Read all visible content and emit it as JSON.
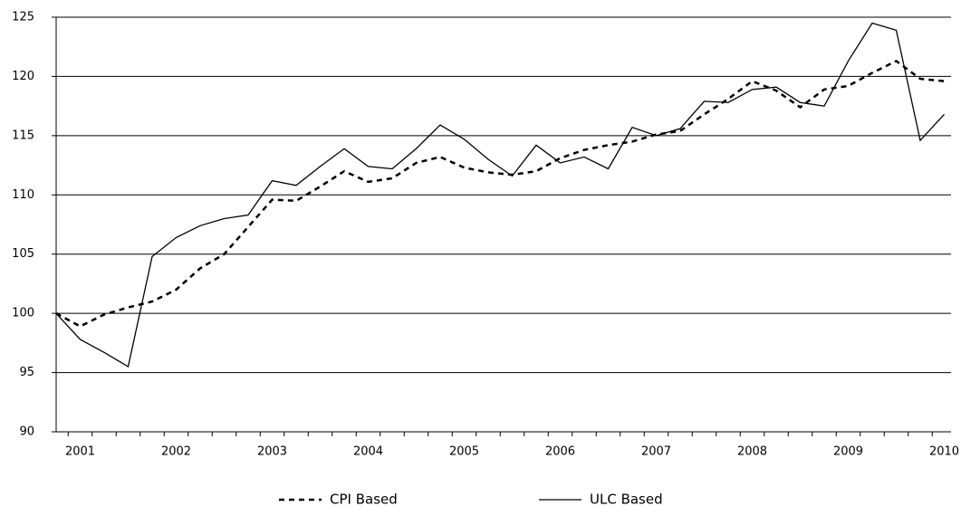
{
  "chart_data": {
    "type": "line",
    "categories": [
      null,
      "2001",
      null,
      null,
      null,
      "2002",
      null,
      null,
      null,
      "2003",
      null,
      null,
      null,
      "2004",
      null,
      null,
      null,
      "2005",
      null,
      null,
      null,
      "2006",
      null,
      null,
      null,
      "2007",
      null,
      null,
      null,
      "2008",
      null,
      null,
      null,
      "2009",
      null,
      null,
      null,
      "2010"
    ],
    "series": [
      {
        "name": "CPI Based",
        "color": "#000000",
        "dash": true,
        "values": [
          100,
          98.9,
          99.9,
          100.5,
          101.0,
          102.0,
          103.8,
          105.0,
          107.3,
          109.6,
          109.5,
          110.7,
          112.0,
          111.1,
          111.4,
          112.7,
          113.2,
          112.3,
          111.9,
          111.7,
          112.0,
          113.1,
          113.8,
          114.2,
          114.5,
          115.1,
          115.4,
          116.8,
          118.1,
          119.6,
          118.8,
          117.4,
          118.9,
          119.2,
          120.3,
          121.3,
          119.8,
          119.6
        ]
      },
      {
        "name": "ULC Based",
        "color": "#000000",
        "dash": false,
        "values": [
          100,
          97.8,
          96.7,
          95.5,
          104.8,
          106.4,
          107.4,
          108.0,
          108.3,
          111.2,
          110.8,
          112.4,
          113.9,
          112.4,
          112.2,
          113.9,
          115.9,
          114.7,
          113.0,
          111.6,
          114.2,
          112.7,
          113.2,
          112.2,
          115.7,
          115.0,
          115.6,
          117.9,
          117.8,
          118.9,
          119.1,
          117.8,
          117.5,
          121.3,
          124.5,
          123.9,
          114.6,
          116.8
        ]
      }
    ],
    "ylim": [
      90,
      125
    ],
    "yticks": [
      90,
      95,
      100,
      105,
      110,
      115,
      120,
      125
    ],
    "grid": true,
    "legend": "bottom"
  }
}
